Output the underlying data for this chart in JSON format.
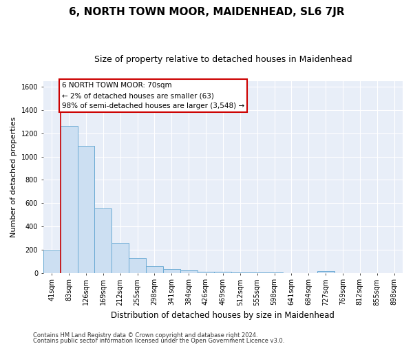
{
  "title": "6, NORTH TOWN MOOR, MAIDENHEAD, SL6 7JR",
  "subtitle": "Size of property relative to detached houses in Maidenhead",
  "xlabel": "Distribution of detached houses by size in Maidenhead",
  "ylabel": "Number of detached properties",
  "footer_line1": "Contains HM Land Registry data © Crown copyright and database right 2024.",
  "footer_line2": "Contains public sector information licensed under the Open Government Licence v3.0.",
  "categories": [
    "41sqm",
    "83sqm",
    "126sqm",
    "169sqm",
    "212sqm",
    "255sqm",
    "298sqm",
    "341sqm",
    "384sqm",
    "426sqm",
    "469sqm",
    "512sqm",
    "555sqm",
    "598sqm",
    "641sqm",
    "684sqm",
    "727sqm",
    "769sqm",
    "812sqm",
    "855sqm",
    "898sqm"
  ],
  "values": [
    190,
    1265,
    1095,
    555,
    260,
    125,
    58,
    35,
    20,
    10,
    10,
    5,
    3,
    2,
    0,
    0,
    15,
    0,
    0,
    0,
    0
  ],
  "bar_color": "#ccdff2",
  "bar_edge_color": "#6aaad4",
  "red_line_x": 0.5,
  "annotation_line1": "6 NORTH TOWN MOOR: 70sqm",
  "annotation_line2": "← 2% of detached houses are smaller (63)",
  "annotation_line3": "98% of semi-detached houses are larger (3,548) →",
  "annotation_box_color": "#ffffff",
  "annotation_box_edge_color": "#cc0000",
  "ylim": [
    0,
    1650
  ],
  "yticks": [
    0,
    200,
    400,
    600,
    800,
    1000,
    1200,
    1400,
    1600
  ],
  "bg_color": "#e8eef8",
  "grid_color": "#ffffff",
  "title_fontsize": 11,
  "subtitle_fontsize": 9,
  "tick_fontsize": 7,
  "ylabel_fontsize": 8,
  "xlabel_fontsize": 8.5,
  "annotation_fontsize": 7.5,
  "footer_fontsize": 6
}
